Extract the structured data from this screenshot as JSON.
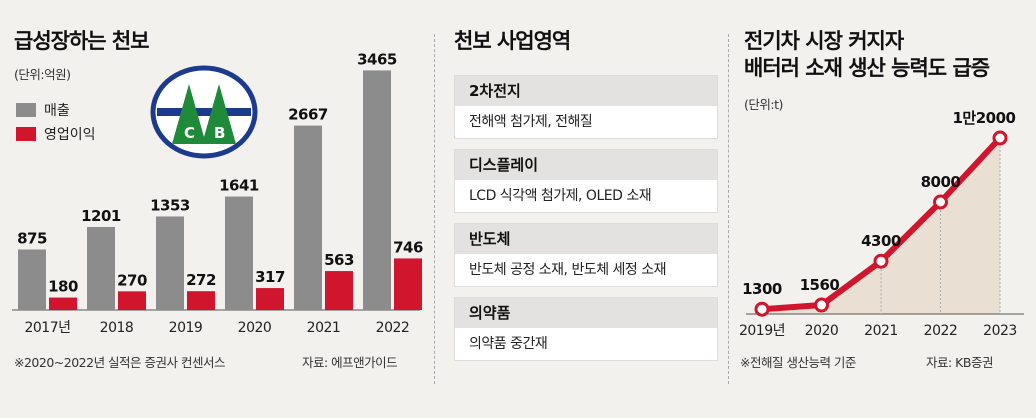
{
  "left": {
    "title": "급성장하는 천보",
    "unit": "(단위:억원)",
    "legend": [
      {
        "label": "매출",
        "color": "#8c8c8c"
      },
      {
        "label": "영업이익",
        "color": "#d0152d"
      }
    ],
    "logo_letters": [
      "C",
      "B"
    ],
    "note": "※2020~2022년 실적은 증권사 컨센서스",
    "source": "자료: 에프앤가이드"
  },
  "middle": {
    "title": "천보 사업영역",
    "segments": [
      {
        "name": "2차전지",
        "desc": "전해액 첨가제, 전해질"
      },
      {
        "name": "디스플레이",
        "desc": "LCD 식각액 첨가제, OLED 소재"
      },
      {
        "name": "반도체",
        "desc": "반도체 공정 소재, 반도체 세정 소재"
      },
      {
        "name": "의약품",
        "desc": "의약품 중간재"
      }
    ]
  },
  "right": {
    "title_line1": "전기차 시장 커지자",
    "title_line2": "배터러 소재 생산 능력도 급증",
    "unit": "(단위:t)",
    "note": "※전해질 생산능력 기준",
    "source": "자료: KB증권"
  },
  "chart_data": [
    {
      "type": "bar",
      "title": "급성장하는 천보",
      "ylabel": "억원",
      "categories": [
        "2017년",
        "2018",
        "2019",
        "2020",
        "2021",
        "2022"
      ],
      "series": [
        {
          "name": "매출",
          "color": "#8c8c8c",
          "values": [
            875,
            1201,
            1353,
            1641,
            2667,
            3465
          ],
          "labels": [
            "875",
            "1201",
            "1353",
            "1641",
            "2667",
            "3465"
          ]
        },
        {
          "name": "영업이익",
          "color": "#d0152d",
          "values": [
            180,
            270,
            272,
            317,
            563,
            746
          ],
          "labels": [
            "180",
            "270",
            "272",
            "317",
            "563",
            "746"
          ]
        }
      ],
      "ylim": [
        0,
        3500
      ]
    },
    {
      "type": "line",
      "title": "전기차 시장 커지자 배터러 소재 생산 능력도 급증",
      "ylabel": "t",
      "x": [
        "2019년",
        "2020",
        "2021",
        "2022",
        "2023"
      ],
      "series": [
        {
          "name": "전해질 생산능력",
          "color": "#d0152d",
          "values": [
            1300,
            1560,
            4300,
            8000,
            12000
          ],
          "labels": [
            "1300",
            "1560",
            "4300",
            "8000",
            "1만2000"
          ]
        }
      ],
      "ylim": [
        0,
        12000
      ]
    }
  ]
}
